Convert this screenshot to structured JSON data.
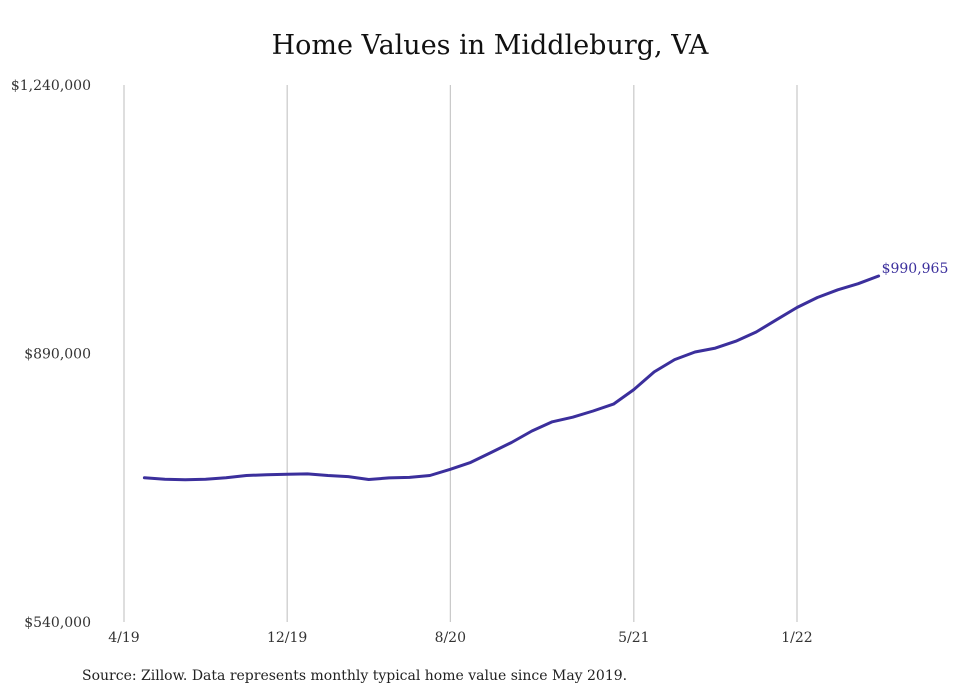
{
  "chart_data": {
    "type": "line",
    "title": "Home Values in Middleburg, VA",
    "source": "Source: Zillow. Data represents monthly typical home value since May 2019.",
    "ylim": [
      540000,
      1240000
    ],
    "y_ticks": [
      "$540,000",
      "$890,000",
      "$1,240,000"
    ],
    "y_tick_values": [
      540000,
      890000,
      1240000
    ],
    "x_ticks": [
      "4/19",
      "12/19",
      "8/20",
      "5/21",
      "1/22"
    ],
    "x_tick_dates": [
      "2019-04",
      "2019-12",
      "2020-08",
      "2021-05",
      "2022-01"
    ],
    "grid": "vertical",
    "line_color": "#3b2f9c",
    "end_label": "$990,965",
    "series": [
      {
        "x": [
          "2019-05",
          "2019-06",
          "2019-07",
          "2019-08",
          "2019-09",
          "2019-10",
          "2019-11",
          "2019-12",
          "2020-01",
          "2020-02",
          "2020-03",
          "2020-04",
          "2020-05",
          "2020-06",
          "2020-07",
          "2020-08",
          "2020-09",
          "2020-10",
          "2020-11",
          "2020-12",
          "2021-01",
          "2021-02",
          "2021-03",
          "2021-04",
          "2021-05",
          "2021-06",
          "2021-07",
          "2021-08",
          "2021-09",
          "2021-10",
          "2021-11",
          "2021-12",
          "2022-01",
          "2022-02",
          "2022-03",
          "2022-04",
          "2022-05"
        ],
        "values": [
          728000,
          726000,
          725500,
          726000,
          728000,
          731000,
          732000,
          732500,
          733000,
          731000,
          729500,
          725800,
          727800,
          728500,
          731000,
          739000,
          748000,
          761000,
          774000,
          789000,
          801000,
          807000,
          815000,
          824000,
          843000,
          866000,
          882000,
          892000,
          897000,
          906000,
          918000,
          934000,
          950000,
          963000,
          973000,
          981000,
          990965
        ]
      }
    ]
  }
}
